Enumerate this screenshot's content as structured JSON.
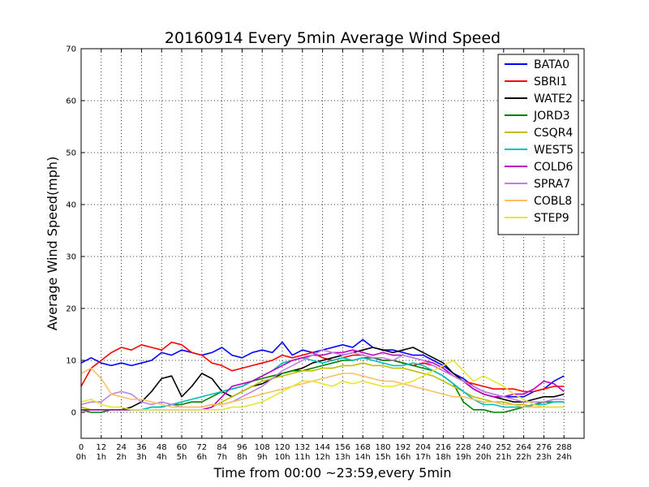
{
  "chart_data": {
    "type": "line",
    "title": "20160914 Every 5min Average Wind Speed",
    "xlabel": "Time from 00:00 ~23:59,every 5min",
    "ylabel": "Average Wind Speed(mph)",
    "xlim": [
      0,
      300
    ],
    "ylim": [
      -5,
      70
    ],
    "grid": true,
    "legend_position": "top-right",
    "x_ticks": [
      {
        "value": 0,
        "label": "0",
        "sublabel": "0h"
      },
      {
        "value": 12,
        "label": "12",
        "sublabel": "1h"
      },
      {
        "value": 24,
        "label": "24",
        "sublabel": "2h"
      },
      {
        "value": 36,
        "label": "36",
        "sublabel": "3h"
      },
      {
        "value": 48,
        "label": "48",
        "sublabel": "4h"
      },
      {
        "value": 60,
        "label": "60",
        "sublabel": "5h"
      },
      {
        "value": 72,
        "label": "72",
        "sublabel": "6h"
      },
      {
        "value": 84,
        "label": "84",
        "sublabel": "7h"
      },
      {
        "value": 96,
        "label": "96",
        "sublabel": "8h"
      },
      {
        "value": 108,
        "label": "108",
        "sublabel": "9h"
      },
      {
        "value": 120,
        "label": "120",
        "sublabel": "10h"
      },
      {
        "value": 132,
        "label": "132",
        "sublabel": "11h"
      },
      {
        "value": 144,
        "label": "144",
        "sublabel": "12h"
      },
      {
        "value": 156,
        "label": "156",
        "sublabel": "13h"
      },
      {
        "value": 168,
        "label": "168",
        "sublabel": "14h"
      },
      {
        "value": 180,
        "label": "180",
        "sublabel": "15h"
      },
      {
        "value": 192,
        "label": "192",
        "sublabel": "16h"
      },
      {
        "value": 204,
        "label": "204",
        "sublabel": "17h"
      },
      {
        "value": 216,
        "label": "216",
        "sublabel": "18h"
      },
      {
        "value": 228,
        "label": "228",
        "sublabel": "19h"
      },
      {
        "value": 240,
        "label": "240",
        "sublabel": "20h"
      },
      {
        "value": 252,
        "label": "252",
        "sublabel": "21h"
      },
      {
        "value": 264,
        "label": "264",
        "sublabel": "22h"
      },
      {
        "value": 276,
        "label": "276",
        "sublabel": "23h"
      },
      {
        "value": 288,
        "label": "288",
        "sublabel": "24h"
      }
    ],
    "y_ticks": [
      0,
      10,
      20,
      30,
      40,
      50,
      60,
      70
    ],
    "x": [
      0,
      6,
      12,
      18,
      24,
      30,
      36,
      42,
      48,
      54,
      60,
      66,
      72,
      78,
      84,
      90,
      96,
      102,
      108,
      114,
      120,
      126,
      132,
      138,
      144,
      150,
      156,
      162,
      168,
      174,
      180,
      186,
      192,
      198,
      204,
      210,
      216,
      222,
      228,
      234,
      240,
      246,
      252,
      258,
      264,
      270,
      276,
      282,
      288
    ],
    "series": [
      {
        "name": "BATA0",
        "color": "#0000ff",
        "values": [
          9.5,
          10.5,
          9.5,
          9.0,
          9.5,
          9.0,
          9.5,
          10.0,
          11.5,
          11.0,
          12.0,
          11.5,
          11.0,
          11.5,
          12.5,
          11.0,
          10.5,
          11.5,
          12.0,
          11.5,
          13.5,
          11.0,
          12.0,
          11.5,
          12.0,
          12.5,
          13.0,
          12.5,
          14.0,
          12.5,
          12.0,
          12.0,
          11.5,
          11.0,
          11.0,
          10.0,
          9.0,
          7.5,
          6.5,
          5.0,
          4.0,
          3.5,
          3.0,
          3.0,
          3.0,
          4.0,
          4.5,
          6.0,
          7.0
        ]
      },
      {
        "name": "SBRI1",
        "color": "#ff0000",
        "values": [
          5.0,
          8.5,
          10.0,
          11.5,
          12.5,
          12.0,
          13.0,
          12.5,
          12.0,
          13.5,
          13.0,
          11.5,
          11.0,
          9.5,
          9.0,
          8.0,
          8.5,
          9.0,
          9.5,
          10.0,
          11.0,
          10.5,
          11.0,
          11.5,
          10.5,
          10.0,
          10.5,
          11.0,
          11.0,
          10.5,
          10.0,
          10.0,
          9.5,
          9.0,
          9.5,
          9.0,
          8.0,
          7.0,
          6.0,
          5.5,
          5.0,
          4.5,
          4.5,
          4.5,
          4.0,
          4.0,
          4.5,
          5.0,
          5.0
        ]
      },
      {
        "name": "WATE2",
        "color": "#000000",
        "values": [
          0.5,
          0.5,
          0.5,
          0.5,
          0.5,
          1.0,
          2.0,
          4.0,
          6.5,
          7.0,
          3.0,
          5.0,
          7.5,
          6.5,
          4.0,
          3.0,
          4.0,
          5.0,
          5.5,
          6.5,
          7.5,
          8.0,
          8.5,
          9.5,
          10.0,
          10.5,
          11.0,
          11.5,
          12.0,
          12.5,
          12.0,
          11.5,
          12.0,
          12.5,
          11.5,
          10.5,
          9.5,
          7.5,
          6.0,
          4.5,
          3.5,
          3.0,
          2.5,
          2.0,
          2.0,
          2.5,
          3.0,
          3.0,
          3.5
        ]
      },
      {
        "name": "JORD3",
        "color": "#008000",
        "values": [
          0.5,
          0.0,
          0.0,
          0.5,
          0.5,
          0.5,
          0.5,
          1.0,
          1.0,
          1.5,
          1.5,
          2.0,
          2.0,
          3.0,
          4.0,
          4.5,
          5.0,
          6.0,
          6.5,
          7.0,
          7.5,
          8.0,
          8.0,
          8.5,
          9.0,
          9.5,
          10.0,
          10.0,
          10.5,
          10.5,
          10.0,
          10.0,
          9.5,
          9.0,
          8.5,
          8.0,
          7.0,
          5.5,
          2.0,
          0.5,
          0.5,
          0.0,
          0.0,
          0.5,
          1.0,
          1.5,
          2.0,
          2.0,
          2.0
        ]
      },
      {
        "name": "CSQR4",
        "color": "#bfbf00",
        "values": [
          1.0,
          0.5,
          0.5,
          0.5,
          0.5,
          0.5,
          0.5,
          0.5,
          0.5,
          0.5,
          0.5,
          0.5,
          0.5,
          1.0,
          2.0,
          3.0,
          4.0,
          5.0,
          6.0,
          6.5,
          7.0,
          7.5,
          8.0,
          8.0,
          8.5,
          8.5,
          9.0,
          9.0,
          9.5,
          9.0,
          9.0,
          8.5,
          8.5,
          8.0,
          7.5,
          7.0,
          6.0,
          5.0,
          4.0,
          3.0,
          2.5,
          2.0,
          2.0,
          1.5,
          1.5,
          1.0,
          1.0,
          1.0,
          1.0
        ]
      },
      {
        "name": "WEST5",
        "color": "#00bfbf",
        "values": [
          0.5,
          0.5,
          0.5,
          0.5,
          0.5,
          0.5,
          0.5,
          1.0,
          1.0,
          1.5,
          2.0,
          2.5,
          3.0,
          3.5,
          4.0,
          4.5,
          5.0,
          6.0,
          7.0,
          8.0,
          9.5,
          10.0,
          10.5,
          10.0,
          9.5,
          10.0,
          10.5,
          10.0,
          10.5,
          10.0,
          9.5,
          9.0,
          9.0,
          9.5,
          9.0,
          8.0,
          7.0,
          5.5,
          4.0,
          2.5,
          1.5,
          1.5,
          1.0,
          1.0,
          1.0,
          1.5,
          1.5,
          2.0,
          2.0
        ]
      },
      {
        "name": "COLD6",
        "color": "#bf00bf",
        "values": [
          0.5,
          0.5,
          0.5,
          0.5,
          0.5,
          0.5,
          0.5,
          0.5,
          0.5,
          0.5,
          0.5,
          0.5,
          0.5,
          1.0,
          3.0,
          5.0,
          5.5,
          6.0,
          7.0,
          8.0,
          9.0,
          10.0,
          10.5,
          11.0,
          11.0,
          11.5,
          11.5,
          12.0,
          11.5,
          11.0,
          11.5,
          11.0,
          11.0,
          10.5,
          10.0,
          9.5,
          8.5,
          7.0,
          6.0,
          4.5,
          3.5,
          3.0,
          3.0,
          3.5,
          3.5,
          4.5,
          6.0,
          5.5,
          4.0
        ]
      },
      {
        "name": "SPRA7",
        "color": "#bf80e6",
        "values": [
          1.5,
          2.0,
          2.0,
          3.5,
          4.0,
          3.5,
          2.0,
          1.5,
          2.0,
          1.5,
          1.0,
          1.0,
          1.0,
          1.5,
          1.5,
          2.0,
          3.0,
          4.0,
          5.0,
          6.5,
          8.0,
          9.0,
          10.0,
          11.0,
          12.0,
          11.5,
          11.0,
          11.5,
          11.0,
          10.5,
          10.5,
          10.0,
          11.0,
          10.5,
          10.0,
          9.0,
          8.0,
          7.0,
          6.0,
          5.0,
          4.0,
          3.5,
          3.0,
          2.5,
          2.0,
          2.0,
          2.0,
          2.5,
          2.5
        ]
      },
      {
        "name": "COBL8",
        "color": "#ffbf66",
        "values": [
          7.5,
          8.5,
          6.5,
          3.5,
          3.0,
          2.5,
          2.5,
          2.0,
          1.5,
          1.0,
          1.0,
          1.0,
          1.0,
          1.5,
          1.5,
          2.0,
          2.5,
          3.0,
          3.5,
          4.0,
          4.5,
          5.0,
          5.5,
          6.0,
          6.5,
          7.0,
          7.5,
          7.5,
          7.0,
          6.5,
          6.0,
          6.0,
          5.5,
          5.0,
          4.5,
          4.0,
          3.5,
          3.0,
          3.0,
          2.5,
          2.0,
          2.0,
          1.5,
          1.5,
          1.0,
          1.0,
          1.0,
          1.0,
          1.0
        ]
      },
      {
        "name": "STEP9",
        "color": "#e6e633",
        "values": [
          2.0,
          2.5,
          1.5,
          1.0,
          1.0,
          0.5,
          0.5,
          0.5,
          0.5,
          0.5,
          0.5,
          0.5,
          0.5,
          0.5,
          0.5,
          1.0,
          1.0,
          1.5,
          2.0,
          3.0,
          4.0,
          5.0,
          6.0,
          6.0,
          5.5,
          5.0,
          6.0,
          5.5,
          6.0,
          5.5,
          5.0,
          5.0,
          5.5,
          6.0,
          7.0,
          8.0,
          9.0,
          10.0,
          8.0,
          6.0,
          7.0,
          6.0,
          5.0,
          3.5,
          2.5,
          1.5,
          1.0,
          1.0,
          1.0
        ]
      }
    ]
  }
}
